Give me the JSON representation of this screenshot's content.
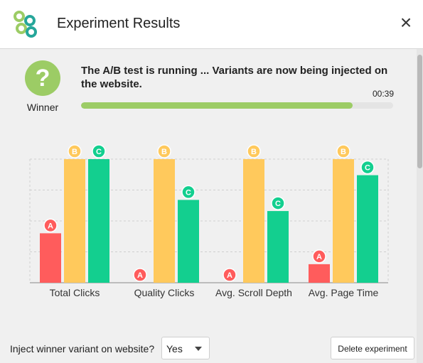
{
  "dialog": {
    "title": "Experiment Results",
    "logo_icon": "chain-link-logo",
    "close_icon": "close-icon"
  },
  "winner": {
    "badge_symbol": "?",
    "label": "Winner",
    "color": "#9ccc65"
  },
  "status": {
    "message": "The A/B test is running ... Variants are now being injected on the website.",
    "timer": "00:39",
    "progress": 0.87
  },
  "chart_data": {
    "type": "bar",
    "categories": [
      "Total Clicks",
      "Quality Clicks",
      "Avg. Scroll Depth",
      "Avg. Page Time"
    ],
    "series": [
      {
        "name": "A",
        "color": "#ff5c5c",
        "values": [
          40,
          0,
          0,
          15
        ]
      },
      {
        "name": "B",
        "color": "#ffc95c",
        "values": [
          100,
          100,
          100,
          100
        ]
      },
      {
        "name": "C",
        "color": "#13cf8f",
        "values": [
          100,
          67,
          58,
          87
        ]
      }
    ],
    "ylim": [
      0,
      100
    ],
    "grid": true,
    "grid_style": "dashed"
  },
  "footer": {
    "inject_label": "Inject winner variant on website?",
    "inject_value": "Yes",
    "delete_label": "Delete experiment"
  }
}
